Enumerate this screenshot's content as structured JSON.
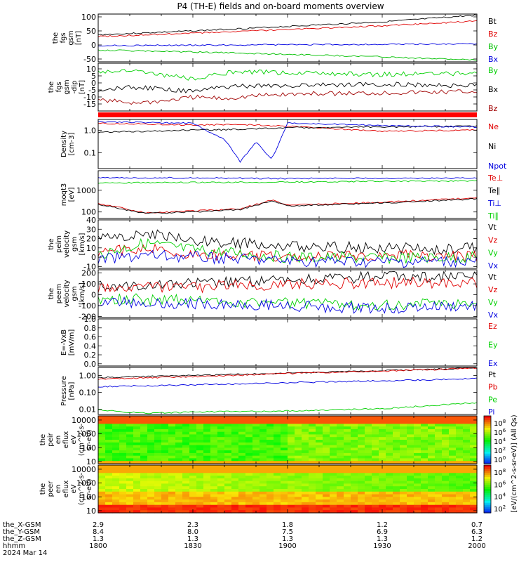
{
  "title": "P4 (TH-E) fields and on-board moments overview",
  "colors": {
    "black": "#000000",
    "red": "#e00000",
    "green": "#00d000",
    "blue": "#0000e0",
    "status_bar": "#ff0000"
  },
  "chart_data": [
    {
      "type": "line",
      "ylabel": [
        "the",
        "fgs",
        "gsm",
        "[nT]"
      ],
      "ylim": [
        -60,
        110
      ],
      "yticks": [
        "100",
        "50",
        "0",
        "-50"
      ],
      "ytick_values": [
        100,
        50,
        0,
        -50
      ],
      "series": [
        {
          "name": "Bt",
          "color": "#000000",
          "x": [
            1800,
            1830,
            1900,
            1930,
            2000
          ],
          "y": [
            36,
            50,
            66,
            82,
            106
          ]
        },
        {
          "name": "Bz",
          "color": "#e00000",
          "x": [
            1800,
            1830,
            1900,
            1930,
            2000
          ],
          "y": [
            30,
            42,
            55,
            68,
            85
          ]
        },
        {
          "name": "By",
          "color": "#00c000",
          "x": [
            1800,
            1830,
            1900,
            1930,
            2000
          ],
          "y": [
            -18,
            -25,
            -33,
            -42,
            -54
          ]
        },
        {
          "name": "Bx",
          "color": "#0000e0",
          "x": [
            1800,
            1830,
            1900,
            1930,
            2000
          ],
          "y": [
            -2,
            -1,
            1,
            2,
            4
          ]
        }
      ]
    },
    {
      "type": "line",
      "ylabel": [
        "the",
        "fgs",
        "gsm",
        "-dip",
        "[nT]"
      ],
      "ylim": [
        -20,
        14
      ],
      "yticks": [
        "10",
        "5",
        "0",
        "-5",
        "-10",
        "-15"
      ],
      "ytick_values": [
        10,
        5,
        0,
        -5,
        -10,
        -15
      ],
      "series": [
        {
          "name": "By",
          "color": "#00d000",
          "x": [
            1800,
            1810,
            1820,
            1830,
            1840,
            1850,
            1900,
            1930,
            2000
          ],
          "y": [
            8,
            9,
            6,
            3,
            7,
            8,
            7,
            6,
            7
          ]
        },
        {
          "name": "Bx",
          "color": "#000000",
          "x": [
            1800,
            1810,
            1820,
            1830,
            1840,
            1850,
            1900,
            1930,
            2000
          ],
          "y": [
            -5,
            -3,
            -4,
            -6,
            -3,
            -2,
            -2,
            -1,
            -2
          ]
        },
        {
          "name": "Bz",
          "color": "#a00000",
          "x": [
            1800,
            1810,
            1820,
            1830,
            1840,
            1850,
            1900,
            1930,
            2000
          ],
          "y": [
            -12,
            -14,
            -13,
            -10,
            -11,
            -9,
            -8,
            -7,
            -6
          ]
        }
      ]
    },
    {
      "type": "line",
      "ylabel": [
        "Density",
        "[cm-3]"
      ],
      "yscale": "log",
      "ylim": [
        0.02,
        3
      ],
      "yticks": [
        "1.0",
        "0.1"
      ],
      "ytick_values": [
        1,
        0.1
      ],
      "series": [
        {
          "name": "Ne",
          "color": "#e00000",
          "x": [
            1800,
            1815,
            1830,
            1845,
            1900,
            1930,
            2000
          ],
          "y": [
            2.0,
            1.9,
            1.7,
            1.8,
            1.5,
            0.9,
            1.0
          ]
        },
        {
          "name": "Ni",
          "color": "#000000",
          "x": [
            1800,
            1815,
            1830,
            1845,
            1900,
            1930,
            2000
          ],
          "y": [
            0.8,
            0.9,
            1.0,
            1.1,
            1.3,
            1.4,
            1.5
          ]
        },
        {
          "name": "Npot",
          "color": "#0000e0",
          "x": [
            1800,
            1815,
            1830,
            1840,
            1845,
            1850,
            1855,
            1900,
            1930,
            2000
          ],
          "y": [
            2.4,
            2.2,
            2.0,
            0.4,
            0.04,
            0.3,
            0.05,
            2.1,
            1.6,
            1.4
          ]
        }
      ]
    },
    {
      "type": "line",
      "ylabel": [
        "moqt3",
        "[eV]"
      ],
      "yscale": "log",
      "ylim": [
        50,
        8000
      ],
      "yticks": [
        "1000",
        "100"
      ],
      "ytick_values": [
        1000,
        100
      ],
      "series": [
        {
          "name": "Te⊥",
          "color": "#e00000",
          "x": [
            1800,
            1815,
            1830,
            1845,
            1855,
            1900,
            1930,
            2000
          ],
          "y": [
            250,
            90,
            110,
            140,
            350,
            210,
            280,
            450
          ]
        },
        {
          "name": "Te∥",
          "color": "#000000",
          "x": [
            1800,
            1815,
            1830,
            1845,
            1855,
            1900,
            1930,
            2000
          ],
          "y": [
            230,
            85,
            100,
            130,
            320,
            190,
            260,
            400
          ]
        },
        {
          "name": "Ti⊥",
          "color": "#0000e0",
          "x": [
            1800,
            1830,
            1900,
            1930,
            2000
          ],
          "y": [
            3800,
            3700,
            3500,
            3600,
            3600
          ]
        },
        {
          "name": "Ti∥",
          "color": "#00d000",
          "x": [
            1800,
            1830,
            1900,
            1930,
            2000
          ],
          "y": [
            2200,
            2300,
            2400,
            2600,
            2700
          ]
        }
      ]
    },
    {
      "type": "line",
      "ylabel": [
        "the",
        "peim",
        "velocity",
        "gsm",
        "[km/s]"
      ],
      "ylim": [
        -12,
        40
      ],
      "yticks": [
        "40",
        "30",
        "20",
        "10",
        "0",
        "-10"
      ],
      "ytick_values": [
        40,
        30,
        20,
        10,
        0,
        -10
      ],
      "series": [
        {
          "name": "Vt",
          "color": "#000000",
          "x": [
            1800,
            1815,
            1830,
            1900,
            1930,
            2000
          ],
          "y": [
            20,
            25,
            18,
            12,
            10,
            9
          ]
        },
        {
          "name": "Vz",
          "color": "#e00000",
          "x": [
            1800,
            1815,
            1830,
            1900,
            1930,
            2000
          ],
          "y": [
            5,
            10,
            3,
            0,
            2,
            1
          ]
        },
        {
          "name": "Vy",
          "color": "#00d000",
          "x": [
            1800,
            1815,
            1830,
            1900,
            1930,
            2000
          ],
          "y": [
            3,
            15,
            8,
            0,
            -1,
            0
          ]
        },
        {
          "name": "Vx",
          "color": "#0000e0",
          "x": [
            1800,
            1815,
            1830,
            1900,
            1930,
            2000
          ],
          "y": [
            -3,
            2,
            0,
            -4,
            -5,
            -4
          ]
        }
      ]
    },
    {
      "type": "line",
      "ylabel": [
        "the",
        "peem",
        "velocity",
        "gsm",
        "[km/s]"
      ],
      "ylim": [
        -210,
        230
      ],
      "yticks": [
        "200",
        "100",
        "0",
        "-100",
        "-200"
      ],
      "ytick_values": [
        200,
        100,
        0,
        -100,
        -200
      ],
      "series": [
        {
          "name": "Vt",
          "color": "#000000",
          "x": [
            1800,
            1830,
            1900,
            1930,
            2000
          ],
          "y": [
            90,
            100,
            130,
            170,
            160
          ]
        },
        {
          "name": "Vz",
          "color": "#e00000",
          "x": [
            1800,
            1830,
            1900,
            1930,
            2000
          ],
          "y": [
            50,
            70,
            100,
            110,
            105
          ]
        },
        {
          "name": "Vy",
          "color": "#00d000",
          "x": [
            1800,
            1830,
            1900,
            1930,
            2000
          ],
          "y": [
            -40,
            -50,
            -80,
            -90,
            -80
          ]
        },
        {
          "name": "Vx",
          "color": "#0000e0",
          "x": [
            1800,
            1830,
            1900,
            1930,
            2000
          ],
          "y": [
            -70,
            -80,
            -100,
            -130,
            -110
          ]
        }
      ]
    },
    {
      "type": "line",
      "ylabel": [
        "E=-VxB",
        "[mV/m]"
      ],
      "ylim": [
        -0.05,
        1.0
      ],
      "yticks": [
        "1.0",
        "0.8",
        "0.6",
        "0.4",
        "0.2",
        "0.0"
      ],
      "ytick_values": [
        1.0,
        0.8,
        0.6,
        0.4,
        0.2,
        0.0
      ],
      "series": [
        {
          "name": "Ez",
          "color": "#e00000",
          "x": [],
          "y": []
        },
        {
          "name": "Ey",
          "color": "#00d000",
          "x": [],
          "y": []
        },
        {
          "name": "Ex",
          "color": "#0000e0",
          "x": [],
          "y": []
        }
      ]
    },
    {
      "type": "line",
      "ylabel": [
        "Pressure",
        "[nPa]"
      ],
      "yscale": "log",
      "ylim": [
        0.005,
        3
      ],
      "yticks": [
        "1.00",
        "0.10",
        "0.01"
      ],
      "ytick_values": [
        1,
        0.1,
        0.01
      ],
      "series": [
        {
          "name": "Pt",
          "color": "#000000",
          "x": [
            1800,
            1830,
            1900,
            1930,
            2000
          ],
          "y": [
            0.75,
            1.0,
            1.4,
            1.9,
            2.8
          ]
        },
        {
          "name": "Pb",
          "color": "#e00000",
          "x": [
            1800,
            1830,
            1900,
            1930,
            2000
          ],
          "y": [
            0.6,
            0.85,
            1.3,
            1.8,
            2.7
          ]
        },
        {
          "name": "Pe",
          "color": "#00d000",
          "x": [
            1800,
            1815,
            1830,
            1900,
            1930,
            2000
          ],
          "y": [
            0.009,
            0.006,
            0.007,
            0.008,
            0.011,
            0.025
          ]
        },
        {
          "name": "Pi",
          "color": "#0000e0",
          "x": [
            1800,
            1830,
            1900,
            1930,
            2000
          ],
          "y": [
            0.22,
            0.28,
            0.38,
            0.48,
            0.65
          ]
        }
      ]
    },
    {
      "type": "heatmap",
      "ylabel": [
        "the",
        "peir",
        "en",
        "eflux",
        "eV",
        "(cm^2-s-",
        "sr-eV)"
      ],
      "yscale": "log",
      "ylim": [
        7,
        20000
      ],
      "yticks": [
        "10000",
        "1000",
        "100",
        "10"
      ],
      "ytick_values": [
        10000,
        1000,
        100,
        10
      ],
      "colorbar": {
        "ticks": [
          "10^8",
          "10^6",
          "10^4",
          "10^2",
          "10^0"
        ]
      }
    },
    {
      "type": "heatmap",
      "ylabel": [
        "the",
        "peer",
        "en",
        "eflux",
        "eV",
        "(cm^2-s-",
        "sr-eV)"
      ],
      "yscale": "log",
      "ylim": [
        7,
        20000
      ],
      "yticks": [
        "10000",
        "1000",
        "100",
        "10"
      ],
      "ytick_values": [
        10000,
        1000,
        100,
        10
      ],
      "colorbar": {
        "ticks": [
          "10^8",
          "10^6",
          "10^4",
          "10^2"
        ]
      }
    }
  ],
  "colorbar_label": "[eV/(cm^2-s-sr-eV)] (All Qs)",
  "x_axis": {
    "xlim": [
      1800,
      2000
    ],
    "tick_values": [
      1800,
      1830,
      1900,
      1930,
      2000
    ],
    "row_labels": [
      "the_X-GSM",
      "the_Y-GSM",
      "the_Z-GSM",
      "hhmm",
      "2024 Mar 14"
    ],
    "rows": [
      [
        "2.9",
        "2.3",
        "1.8",
        "1.2",
        "0.7"
      ],
      [
        "8.4",
        "8.0",
        "7.5",
        "6.9",
        "6.3"
      ],
      [
        "1.3",
        "1.3",
        "1.3",
        "1.3",
        "1.2"
      ],
      [
        "1800",
        "1830",
        "1900",
        "1930",
        "2000"
      ]
    ]
  }
}
